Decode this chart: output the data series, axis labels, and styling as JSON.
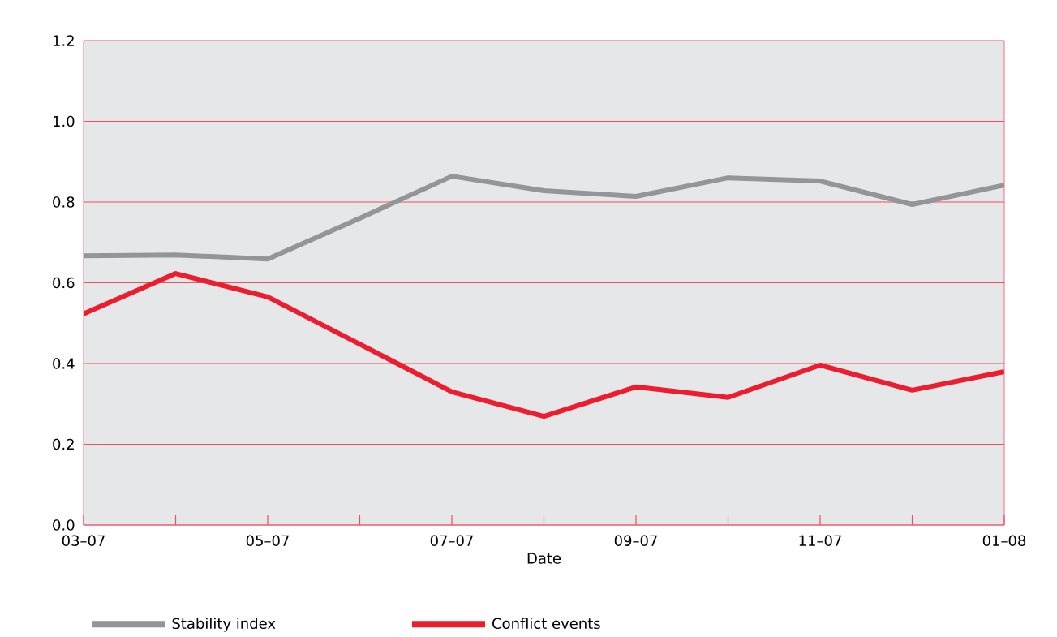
{
  "chart_data": {
    "type": "line",
    "xlabel": "Date",
    "categories": [
      "03–07",
      null,
      "05–07",
      null,
      "07–07",
      null,
      "09–07",
      null,
      "11–07",
      null,
      "01–08"
    ],
    "series": [
      {
        "name": "Stability index",
        "color": "#939598",
        "values": [
          0.667,
          0.669,
          0.659,
          0.76,
          0.864,
          0.828,
          0.814,
          0.86,
          0.852,
          0.794,
          0.842
        ]
      },
      {
        "name": "Conflict events",
        "color": "#ed1c2e",
        "values": [
          0.523,
          0.623,
          0.565,
          0.448,
          0.33,
          0.269,
          0.342,
          0.316,
          0.396,
          0.334,
          0.38
        ]
      }
    ],
    "ylim": [
      0,
      1.2
    ],
    "yticks": [
      {
        "value": 0,
        "label": "0.0"
      },
      0.2,
      0.4,
      0.6,
      0.8,
      {
        "value": 1,
        "label": "1.0"
      },
      1.2
    ],
    "grid": "y",
    "legend": "bottom",
    "marker": "none",
    "line_style": "solid"
  }
}
